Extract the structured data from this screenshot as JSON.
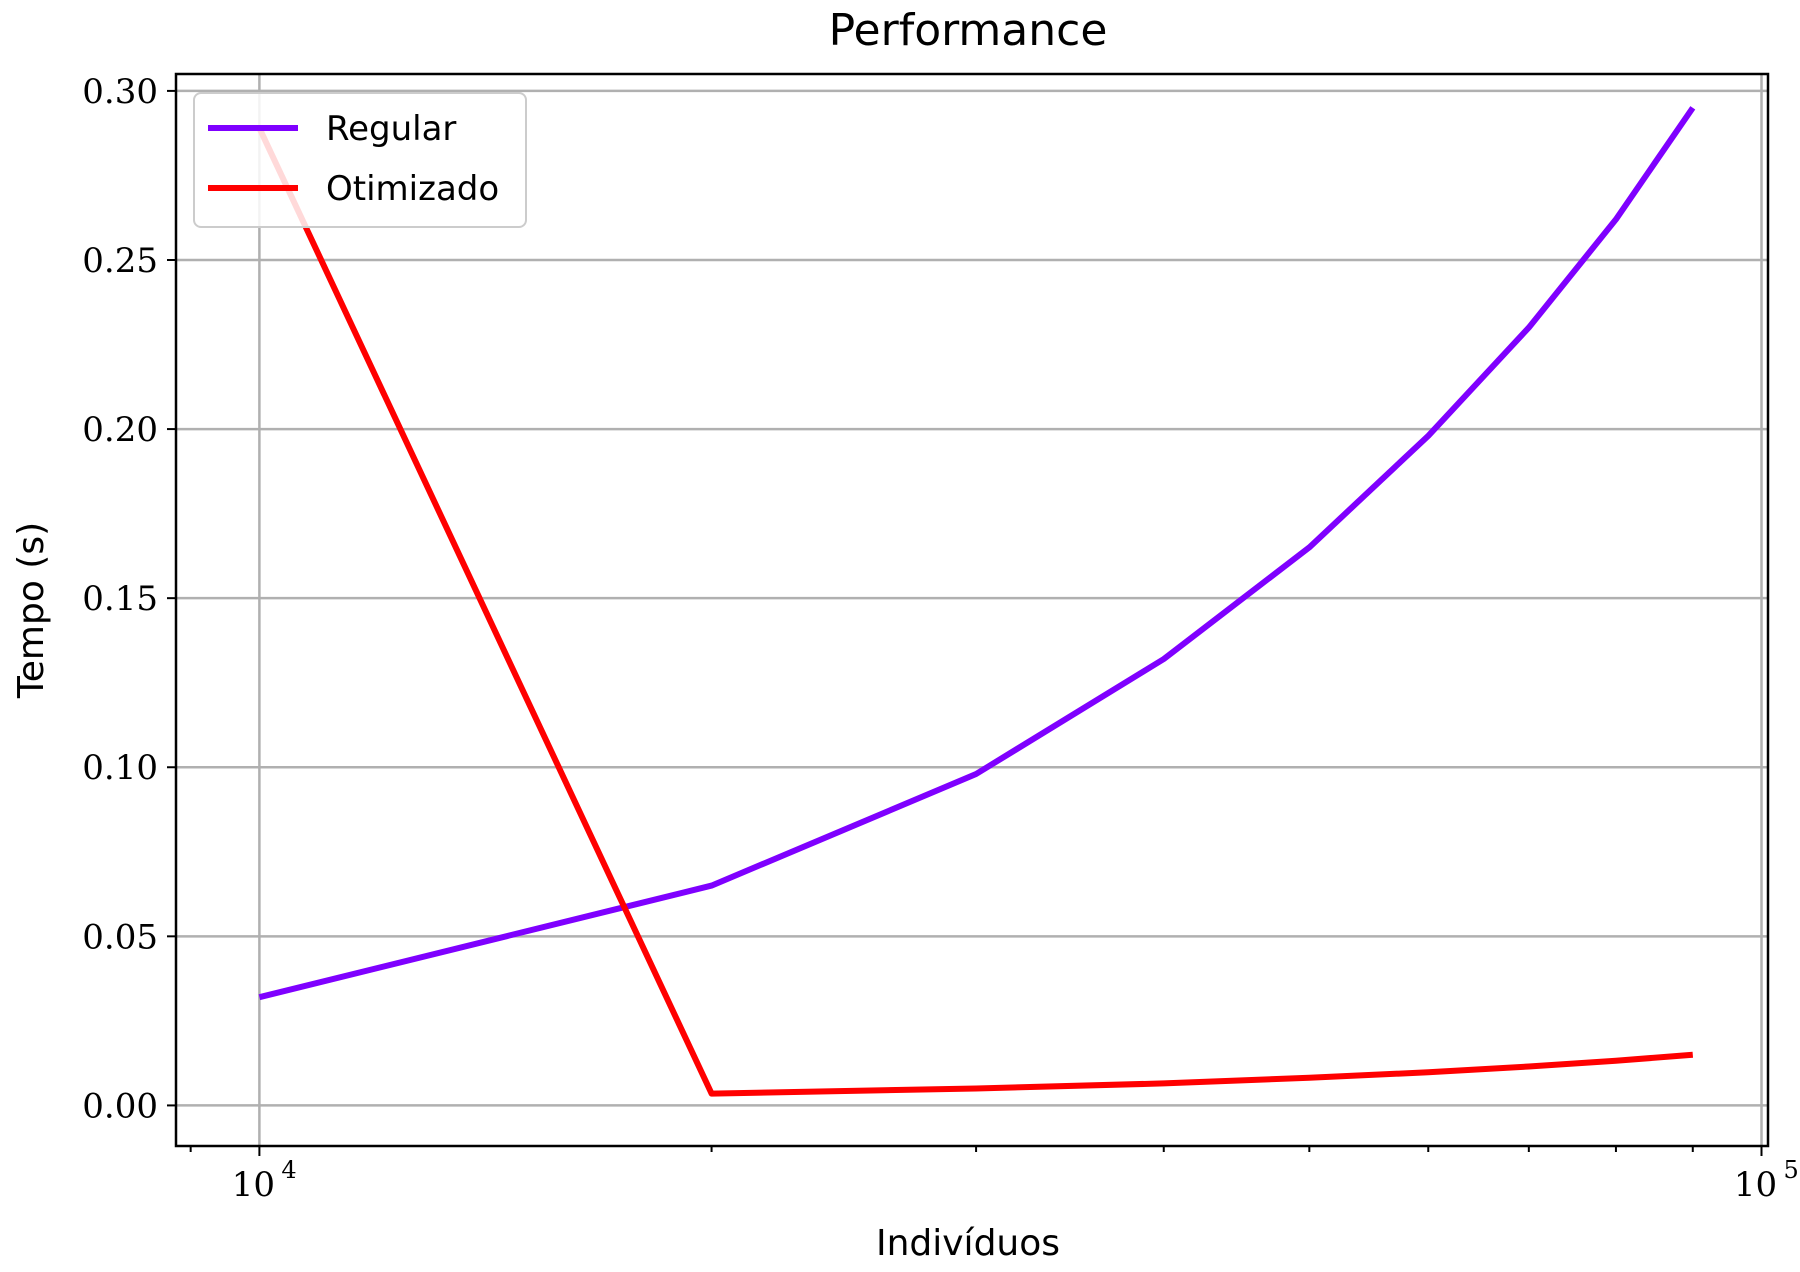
{
  "chart_data": {
    "type": "line",
    "title": "Performance",
    "xlabel": "Indivíduos",
    "ylabel": "Tempo (s)",
    "xscale": "log",
    "xlim": [
      8800,
      101000
    ],
    "ylim": [
      -0.012,
      0.305
    ],
    "grid": true,
    "legend_position": "upper-left",
    "x": [
      10000,
      20000,
      30000,
      40000,
      50000,
      60000,
      70000,
      80000,
      90000
    ],
    "series": [
      {
        "name": "Regular",
        "color": "#7f00ff",
        "values": [
          0.032,
          0.065,
          0.098,
          0.132,
          0.165,
          0.198,
          0.23,
          0.262,
          0.295
        ]
      },
      {
        "name": "Otimizado",
        "color": "#ff0000",
        "values": [
          0.289,
          0.0035,
          0.005,
          0.0065,
          0.0082,
          0.0098,
          0.0115,
          0.0132,
          0.015
        ]
      }
    ],
    "y_ticks": [
      {
        "value": 0.0,
        "label": "0.00"
      },
      {
        "value": 0.05,
        "label": "0.05"
      },
      {
        "value": 0.1,
        "label": "0.10"
      },
      {
        "value": 0.15,
        "label": "0.15"
      },
      {
        "value": 0.2,
        "label": "0.20"
      },
      {
        "value": 0.25,
        "label": "0.25"
      },
      {
        "value": 0.3,
        "label": "0.30"
      }
    ],
    "x_major_ticks": [
      {
        "value": 10000,
        "base": "10",
        "exp": "4"
      },
      {
        "value": 100000,
        "base": "10",
        "exp": "5"
      }
    ],
    "x_minor_ticks": [
      9000,
      20000,
      30000,
      40000,
      50000,
      60000,
      70000,
      80000,
      90000
    ]
  }
}
